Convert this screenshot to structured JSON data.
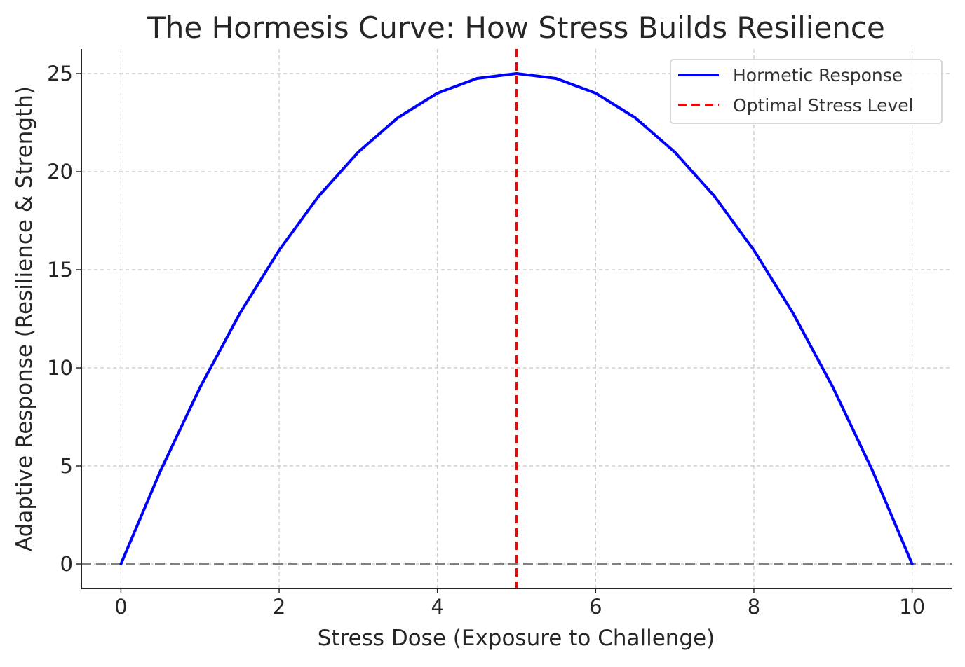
{
  "chart_data": {
    "type": "line",
    "title": "The Hormesis Curve: How Stress Builds Resilience",
    "xlabel": "Stress Dose (Exposure to Challenge)",
    "ylabel": "Adaptive Response (Resilience & Strength)",
    "xlim": [
      -0.5,
      10.5
    ],
    "ylim": [
      -1.25,
      26.25
    ],
    "x_ticks": [
      0,
      2,
      4,
      6,
      8,
      10
    ],
    "y_ticks": [
      0,
      5,
      10,
      15,
      20,
      25
    ],
    "grid": true,
    "legend_position": "top-right",
    "series": [
      {
        "name": "Hormetic Response",
        "style": "solid",
        "color": "#0000ff",
        "x": [
          0,
          0.5,
          1,
          1.5,
          2,
          2.5,
          3,
          3.5,
          4,
          4.5,
          5,
          5.5,
          6,
          6.5,
          7,
          7.5,
          8,
          8.5,
          9,
          9.5,
          10
        ],
        "y": [
          0,
          4.75,
          9,
          12.75,
          16,
          18.75,
          21,
          22.75,
          24,
          24.75,
          25,
          24.75,
          24,
          22.75,
          21,
          18.75,
          16,
          12.75,
          9,
          4.75,
          0
        ]
      },
      {
        "name": "Optimal Stress Level",
        "style": "dashed",
        "color": "#ff0000",
        "orientation": "vertical",
        "x": 5
      }
    ],
    "reference_lines": [
      {
        "orientation": "horizontal",
        "y": 0,
        "style": "dashed",
        "color": "#808080"
      }
    ]
  }
}
